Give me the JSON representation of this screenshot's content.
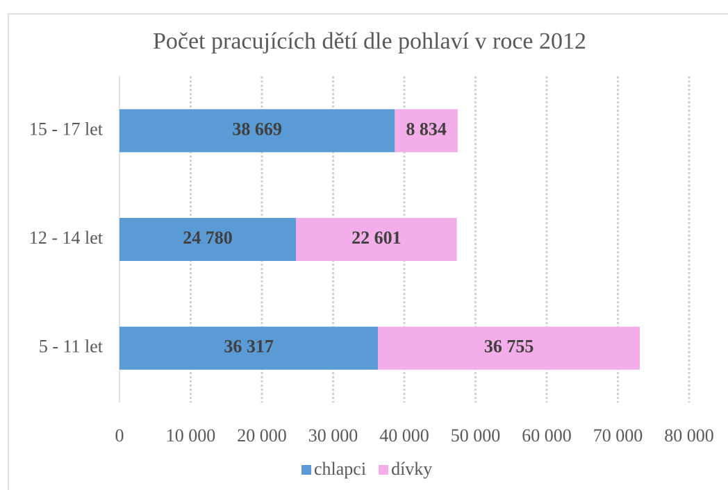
{
  "chart_data": {
    "type": "stacked_barh",
    "title": "Počet pracujících dětí dle pohlaví v roce 2012",
    "categories": [
      "15 - 17 let",
      "12 - 14 let",
      "5 - 11 let"
    ],
    "series": [
      {
        "name": "chlapci",
        "color": "#5b9bd5",
        "values": [
          38669,
          24780,
          36317
        ],
        "value_labels": [
          "38 669",
          "24 780",
          "36 317"
        ]
      },
      {
        "name": "dívky",
        "color": "#f3aee9",
        "values": [
          8834,
          22601,
          36755
        ],
        "value_labels": [
          "8 834",
          "22 601",
          "36 755"
        ]
      }
    ],
    "xlim": [
      0,
      80000
    ],
    "xticks": [
      0,
      {
        "value": 10000,
        "label": "10 000"
      },
      {
        "value": 20000,
        "label": "20 000"
      },
      {
        "value": 30000,
        "label": "30 000"
      },
      {
        "value": 40000,
        "label": "40 000"
      },
      {
        "value": 50000,
        "label": "50 000"
      },
      {
        "value": 60000,
        "label": "60 000"
      },
      {
        "value": 70000,
        "label": "70 000"
      },
      {
        "value": 80000,
        "label": "80 000"
      }
    ],
    "grid": true,
    "legend": "bottom"
  }
}
